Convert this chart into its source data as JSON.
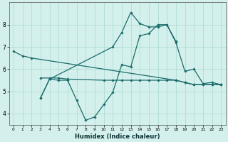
{
  "xlabel": "Humidex (Indice chaleur)",
  "background_color": "#d4f0ec",
  "grid_color": "#a8d8d0",
  "line_color": "#1a6b6b",
  "ylim": [
    3.5,
    9.0
  ],
  "yticks": [
    4,
    5,
    6,
    7,
    8
  ],
  "xticks": [
    0,
    1,
    2,
    3,
    4,
    5,
    6,
    7,
    8,
    9,
    10,
    11,
    12,
    13,
    14,
    15,
    16,
    17,
    18,
    19,
    20,
    21,
    22,
    23
  ],
  "line1_x": [
    0,
    1,
    2,
    18,
    19,
    20,
    21,
    22,
    23
  ],
  "line1_y": [
    6.8,
    6.6,
    6.5,
    5.5,
    5.4,
    5.3,
    5.3,
    5.3,
    5.3
  ],
  "line2_x": [
    3,
    4,
    5,
    6,
    10,
    11,
    12,
    13,
    14,
    15,
    16,
    17,
    18,
    19,
    20,
    21,
    22,
    23
  ],
  "line2_y": [
    5.6,
    5.6,
    5.6,
    5.55,
    5.5,
    5.5,
    5.5,
    5.5,
    5.5,
    5.5,
    5.5,
    5.5,
    5.5,
    5.4,
    5.3,
    5.3,
    5.3,
    5.3
  ],
  "line3_x": [
    3,
    4,
    5,
    6,
    7,
    8,
    9,
    10,
    11,
    12,
    13,
    14,
    15,
    16,
    17,
    18,
    19,
    20,
    21,
    22,
    23
  ],
  "line3_y": [
    4.7,
    5.55,
    5.5,
    5.5,
    4.6,
    3.7,
    3.85,
    4.4,
    4.95,
    6.2,
    6.1,
    7.5,
    7.6,
    8.0,
    8.0,
    7.2,
    5.9,
    6.0,
    5.35,
    5.4,
    5.3
  ],
  "line4_x": [
    3,
    4,
    11,
    12,
    13,
    14,
    15,
    16,
    17,
    18
  ],
  "line4_y": [
    4.7,
    5.55,
    7.0,
    7.65,
    8.55,
    8.05,
    7.9,
    7.9,
    8.0,
    7.25
  ]
}
